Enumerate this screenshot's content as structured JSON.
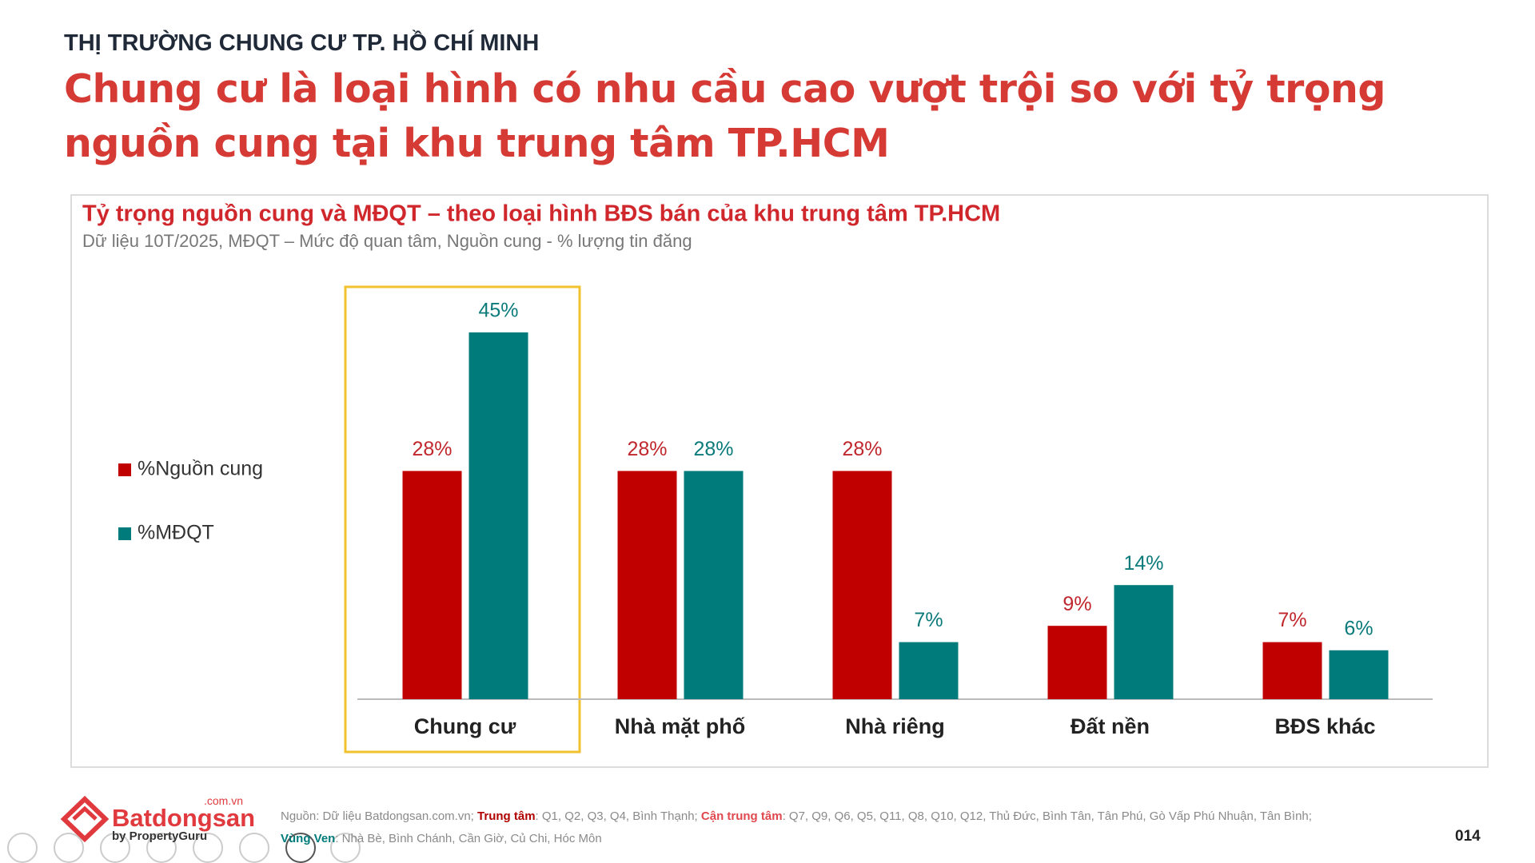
{
  "header": {
    "title": "THỊ TRƯỜNG CHUNG CƯ TP. HỒ CHÍ MINH",
    "headline": "Chung cư là loại hình có nhu cầu cao vượt trội so với tỷ trọng nguồn cung tại khu trung tâm TP.HCM"
  },
  "chart_data": {
    "type": "bar",
    "title": "Tỷ trọng nguồn cung và MĐQT – theo loại hình BĐS bán của khu trung tâm TP.HCM",
    "subtitle": "Dữ liệu 10T/2025, MĐQT – Mức độ quan tâm, Nguồn cung - % lượng tin đăng",
    "categories": [
      "Chung cư",
      "Nhà mặt phố",
      "Nhà riêng",
      "Đất nền",
      "BĐS khác"
    ],
    "series": [
      {
        "name": "%Nguồn cung",
        "color": "#c00000",
        "values": [
          28,
          28,
          28,
          9,
          7
        ],
        "value_labels": [
          "28%",
          "28%",
          "28%",
          "9%",
          "7%"
        ]
      },
      {
        "name": "%MĐQT",
        "color": "#007b7b",
        "values": [
          45,
          28,
          7,
          14,
          6
        ],
        "value_labels": [
          "45%",
          "28%",
          "7%",
          "14%",
          "6%"
        ]
      }
    ],
    "legend": "left"
  },
  "footer": {
    "logo": {
      "name": "Batdongsan",
      "domain": ".com.vn",
      "by": "by PropertyGuru"
    },
    "source": "Nguồn: Dữ liệu Batdongsan.com.vn;",
    "notes": [
      {
        "term": "Trung tâm",
        "text": ": Q1, Q2, Q3, Q4, Bình Thạnh;"
      },
      {
        "term": "Cận trung tâm",
        "text": ": Q7, Q9, Q6, Q5, Q11, Q8, Q10, Q12, Thủ Đức, Bình Tân, Tân Phú, Gò Vấp Phú Nhuận, Tân Bình;"
      },
      {
        "term": "Vùng Ven",
        "text": ": Nhà Bè, Bình Chánh, Cần Giờ, Củ Chi, Hóc Môn"
      }
    ],
    "page": "014"
  }
}
